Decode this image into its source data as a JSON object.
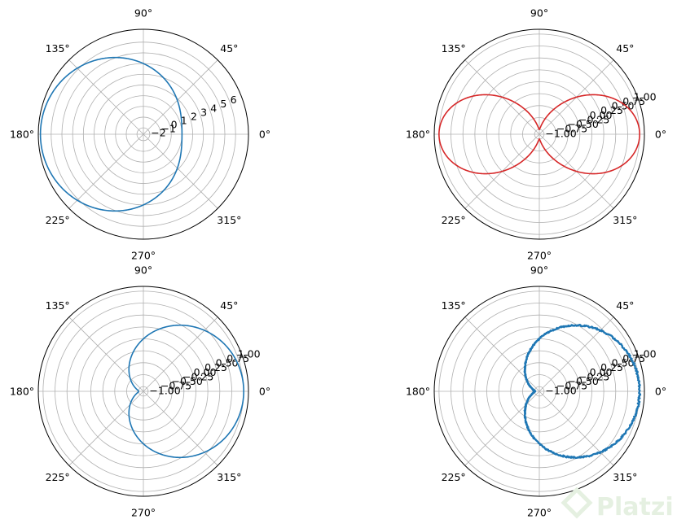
{
  "chart_data": [
    {
      "type": "line",
      "title": "",
      "projection": "polar",
      "grid": true,
      "color": "#1f77b4",
      "equation": "r = 4 - 3*cos(theta)",
      "theta_tick_labels": [
        "0°",
        "45°",
        "90°",
        "135°",
        "180°",
        "225°",
        "270°",
        "315°"
      ],
      "r_tick_labels": [
        "−2",
        "−1",
        "0",
        "1",
        "2",
        "3",
        "4",
        "5",
        "6"
      ],
      "r_ticks": [
        -2,
        -1,
        0,
        1,
        2,
        3,
        4,
        5,
        6
      ],
      "rlim": [
        -2.6,
        7.2
      ]
    },
    {
      "type": "line",
      "title": "",
      "projection": "polar",
      "grid": true,
      "color": "#d62728",
      "equation": "r = cos(2*theta)",
      "theta_tick_labels": [
        "0°",
        "45°",
        "90°",
        "135°",
        "180°",
        "225°",
        "270°",
        "315°"
      ],
      "r_tick_labels": [
        "−1.00",
        "−0.75",
        "−0.50",
        "−0.25",
        "0.00",
        "0.25",
        "0.50",
        "0.75",
        "1.00"
      ],
      "r_ticks": [
        -1.0,
        -0.75,
        -0.5,
        -0.25,
        0.0,
        0.25,
        0.5,
        0.75,
        1.0
      ],
      "rlim": [
        -1.1,
        1.1
      ]
    },
    {
      "type": "line",
      "title": "",
      "projection": "polar",
      "grid": true,
      "color": "#1f77b4",
      "equation": "r = cos(theta)",
      "theta_tick_labels": [
        "0°",
        "45°",
        "90°",
        "135°",
        "180°",
        "225°",
        "270°",
        "315°"
      ],
      "r_tick_labels": [
        "−1.00",
        "−0.75",
        "−0.50",
        "−0.25",
        "0.00",
        "0.25",
        "0.50",
        "0.75",
        "1.00"
      ],
      "r_ticks": [
        -1.0,
        -0.75,
        -0.5,
        -0.25,
        0.0,
        0.25,
        0.5,
        0.75,
        1.0
      ],
      "rlim": [
        -1.1,
        1.1
      ]
    },
    {
      "type": "line",
      "title": "",
      "projection": "polar",
      "grid": true,
      "color": "#1f77b4",
      "noisy": true,
      "equation": "r = cos(theta) + noise",
      "theta_tick_labels": [
        "0°",
        "45°",
        "90°",
        "135°",
        "180°",
        "225°",
        "270°",
        "315°"
      ],
      "r_tick_labels": [
        "−1.00",
        "−0.75",
        "−0.50",
        "−0.25",
        "0.00",
        "0.25",
        "0.50",
        "0.75",
        "1.00"
      ],
      "r_ticks": [
        -1.0,
        -0.75,
        -0.5,
        -0.25,
        0.0,
        0.25,
        0.5,
        0.75,
        1.0
      ],
      "rlim": [
        -1.1,
        1.1
      ]
    }
  ],
  "watermark": {
    "text": "Platzi",
    "color": "#e5f0e1"
  }
}
